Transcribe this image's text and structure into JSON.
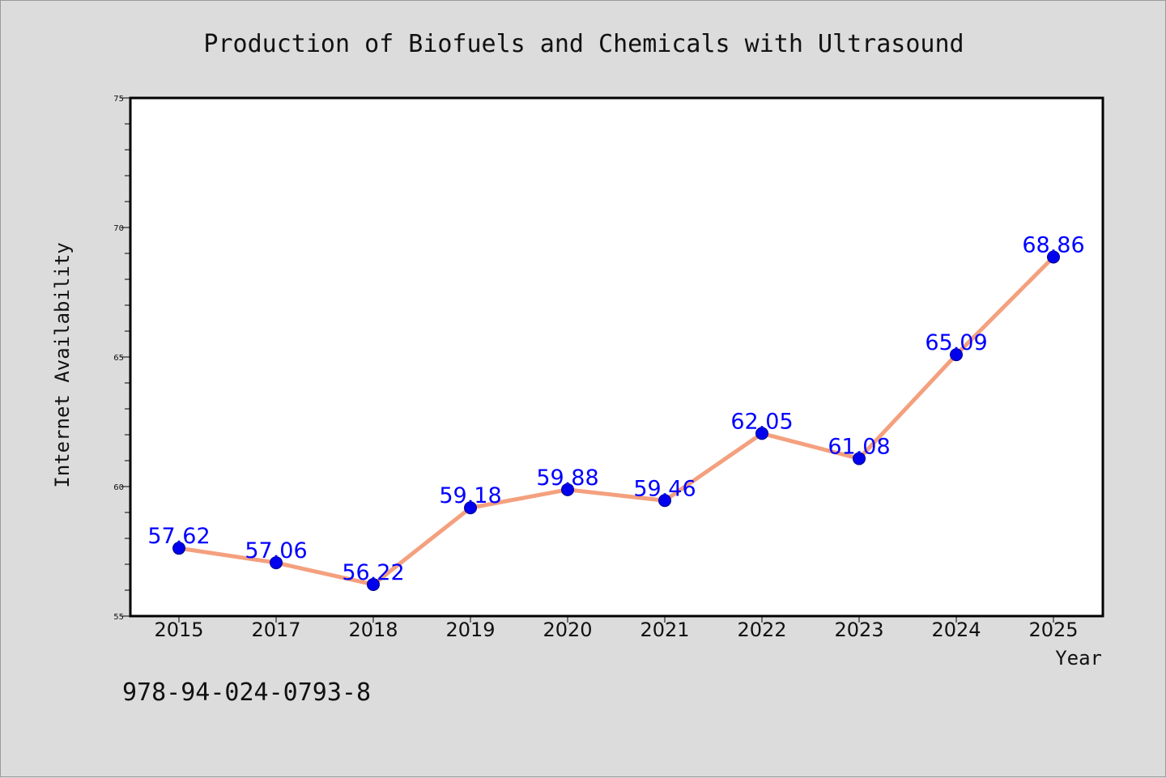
{
  "chart_data": {
    "type": "line",
    "title": "Production of Biofuels and Chemicals with Ultrasound",
    "xlabel": "Year",
    "ylabel": "Internet Availability",
    "categories": [
      "2015",
      "2017",
      "2018",
      "2019",
      "2020",
      "2021",
      "2022",
      "2023",
      "2024",
      "2025"
    ],
    "values": [
      57.62,
      57.06,
      56.22,
      59.18,
      59.88,
      59.46,
      62.05,
      61.08,
      65.09,
      68.86
    ],
    "value_labels": [
      "57.62",
      "57.06",
      "56.22",
      "59.18",
      "59.88",
      "59.46",
      "62.05",
      "61.08",
      "65.09",
      "68.86"
    ],
    "ylim": [
      55,
      75
    ],
    "yticks": [
      55,
      60,
      65,
      70,
      75
    ],
    "grid": false,
    "legend": "none",
    "colors": {
      "line": "#f4a07e",
      "marker": "#0000ee",
      "label": "#0000ff",
      "background": "#dcdcdc",
      "plot_area": "#ffffff"
    }
  },
  "footer_text": "978-94-024-0793-8"
}
